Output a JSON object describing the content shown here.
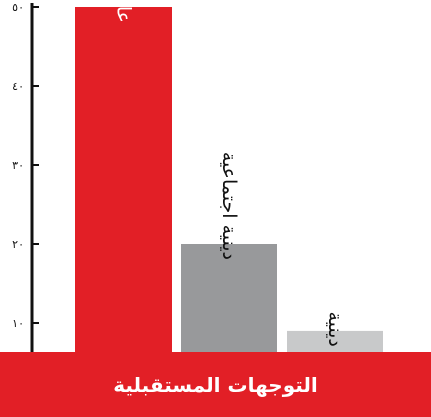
{
  "chart_data": {
    "type": "bar",
    "title": "التوجهات المستقبلية",
    "categories": [
      "عامة",
      "دينية اجتماعية",
      "دينية"
    ],
    "values": [
      50,
      20,
      9
    ],
    "ylim": [
      0,
      50
    ],
    "yticks": [
      10,
      20,
      30,
      40,
      50
    ],
    "ytick_labels": [
      "١٠",
      "٢٠",
      "٣٠",
      "٤٠",
      "٥٠"
    ],
    "colors": [
      "#e21f26",
      "#98999b",
      "#c8c9ca"
    ],
    "label_colors": [
      "#ffffff",
      "#111111",
      "#111111"
    ],
    "grid": false,
    "legend": "none"
  }
}
